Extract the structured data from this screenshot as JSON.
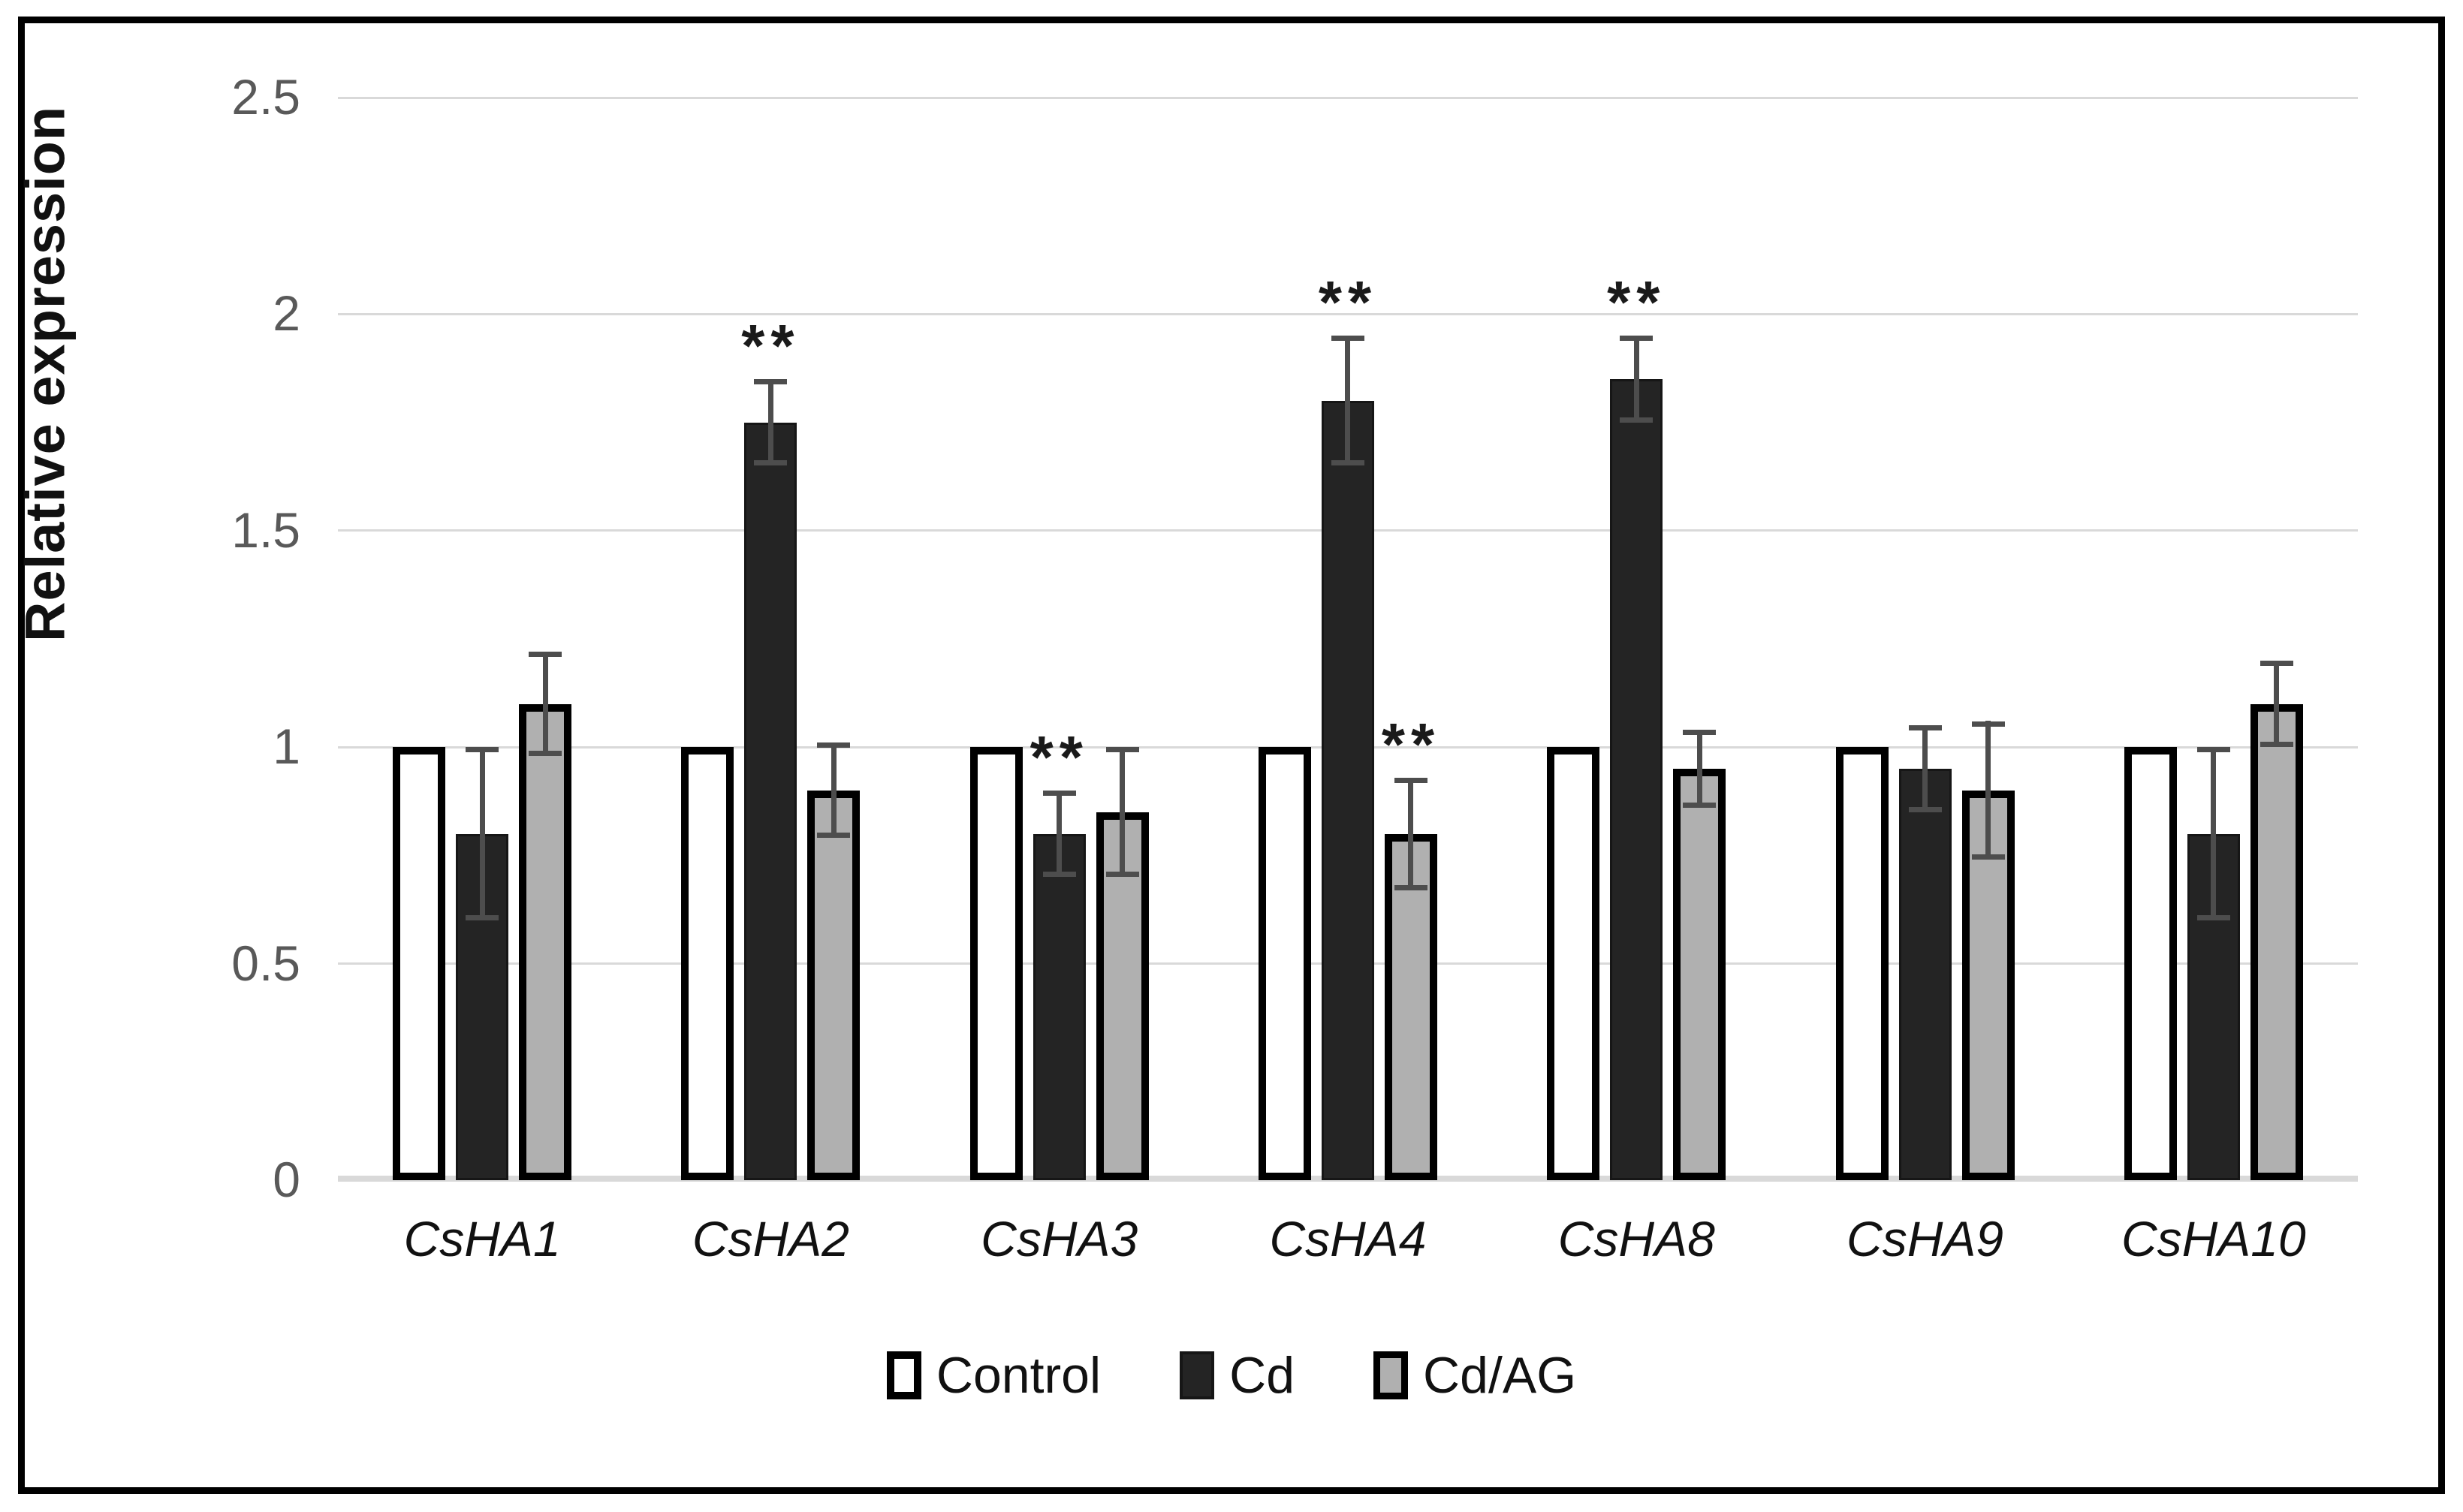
{
  "figure": {
    "y_axis_title": "Relative expression",
    "significance_marker": "**",
    "colors": {
      "control_fill": "#ffffff",
      "cd_fill": "#242424",
      "cdag_fill": "#b0b0b0",
      "bar_border": "#000000",
      "error_bar": "#4d4d4d",
      "gridline": "#d9d9d9",
      "tick_label": "#595959",
      "text": "#111111",
      "frame_border": "#000000"
    }
  },
  "legend": {
    "items": [
      {
        "label": "Control"
      },
      {
        "label": "Cd"
      },
      {
        "label": "Cd/AG"
      }
    ]
  },
  "chart_data": {
    "type": "bar",
    "title": "",
    "xlabel": "",
    "ylabel": "Relative expression",
    "ylim": [
      0,
      2.5
    ],
    "grid": true,
    "legend_position": "bottom",
    "yticks": [
      {
        "v": 0,
        "label": "0"
      },
      {
        "v": 0.5,
        "label": "0.5"
      },
      {
        "v": 1,
        "label": "1"
      },
      {
        "v": 1.5,
        "label": "1.5"
      },
      {
        "v": 2,
        "label": "2"
      },
      {
        "v": 2.5,
        "label": "2.5"
      }
    ],
    "categories": [
      "CsHA1",
      "CsHA2",
      "CsHA3",
      "CsHA4",
      "CsHA8",
      "CsHA9",
      "CsHA10"
    ],
    "series": [
      {
        "name": "Control",
        "style": "control",
        "values": [
          1.0,
          1.0,
          1.0,
          1.0,
          1.0,
          1.0,
          1.0
        ],
        "errors": [
          0,
          0,
          0,
          0,
          0,
          0,
          0
        ],
        "significance": [
          null,
          null,
          null,
          null,
          null,
          null,
          null
        ]
      },
      {
        "name": "Cd",
        "style": "cd",
        "values": [
          0.8,
          1.75,
          0.8,
          1.8,
          1.85,
          0.95,
          0.8
        ],
        "errors": [
          0.2,
          0.1,
          0.1,
          0.15,
          0.1,
          0.1,
          0.2
        ],
        "significance": [
          null,
          "**",
          "**",
          "**",
          "**",
          null,
          null
        ]
      },
      {
        "name": "Cd/AG",
        "style": "cdag",
        "values": [
          1.1,
          0.9,
          0.85,
          0.8,
          0.95,
          0.9,
          1.1
        ],
        "errors": [
          0.12,
          0.11,
          0.15,
          0.13,
          0.09,
          0.16,
          0.1
        ],
        "significance": [
          null,
          null,
          null,
          "**",
          null,
          null,
          null
        ]
      }
    ]
  }
}
